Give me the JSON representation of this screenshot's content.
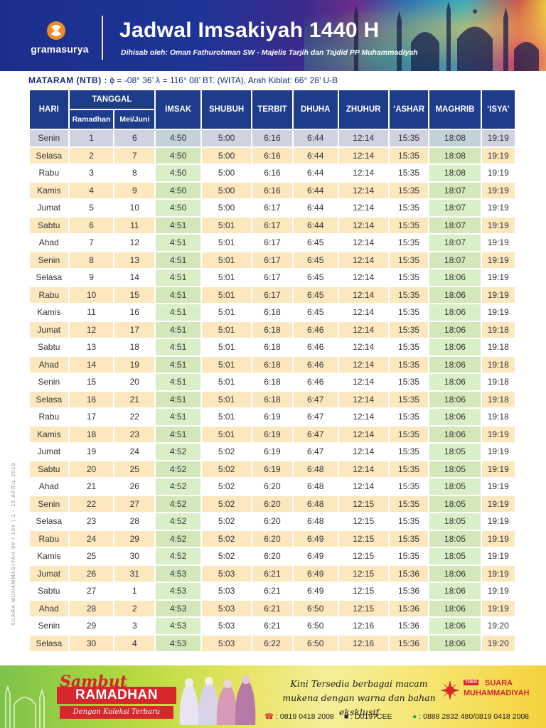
{
  "header": {
    "brand": "gramasurya",
    "title": "Jadwal Imsakiyah 1440 H",
    "subtitle": "Dihisab oleh: Oman Fathurohman SW - Majelis Tarjih dan Tajdid PP Muhammadiyah"
  },
  "location": {
    "city": "MATARAM (NTB) :",
    "details": "ϕ = -08° 36’  λ = 116° 08’  BT. (WITA), Arah Kiblat: 66° 28’ U-B"
  },
  "table": {
    "headers": {
      "hari": "HARI",
      "tanggal": "TANGGAL",
      "ramadhan": "Ramadhan",
      "mei_juni": "Mei/Juni",
      "imsak": "IMSAK",
      "shubuh": "SHUBUH",
      "terbit": "TERBIT",
      "dhuha": "DHUHA",
      "zhuhur": "ZHUHUR",
      "ashar": "‘ASHAR",
      "maghrib": "MAGHRIB",
      "isya": "‘ISYA’"
    },
    "rows": [
      [
        "Senin",
        "1",
        "6",
        "4:50",
        "5:00",
        "6:16",
        "6:44",
        "12:14",
        "15:35",
        "18:08",
        "19:19"
      ],
      [
        "Selasa",
        "2",
        "7",
        "4:50",
        "5:00",
        "6:16",
        "6:44",
        "12:14",
        "15:35",
        "18:08",
        "19:19"
      ],
      [
        "Rabu",
        "3",
        "8",
        "4:50",
        "5:00",
        "6:16",
        "6:44",
        "12:14",
        "15:35",
        "18:08",
        "19:19"
      ],
      [
        "Kamis",
        "4",
        "9",
        "4:50",
        "5:00",
        "6:16",
        "6:44",
        "12:14",
        "15:35",
        "18:07",
        "19:19"
      ],
      [
        "Jumat",
        "5",
        "10",
        "4:50",
        "5:00",
        "6:17",
        "6:44",
        "12:14",
        "15:35",
        "18:07",
        "19:19"
      ],
      [
        "Sabtu",
        "6",
        "11",
        "4:51",
        "5:01",
        "6:17",
        "6:44",
        "12:14",
        "15:35",
        "18:07",
        "19:19"
      ],
      [
        "Ahad",
        "7",
        "12",
        "4:51",
        "5:01",
        "6:17",
        "6:45",
        "12:14",
        "15:35",
        "18:07",
        "19:19"
      ],
      [
        "Senin",
        "8",
        "13",
        "4:51",
        "5:01",
        "6:17",
        "6:45",
        "12:14",
        "15:35",
        "18:07",
        "19:19"
      ],
      [
        "Selasa",
        "9",
        "14",
        "4:51",
        "5:01",
        "6:17",
        "6:45",
        "12:14",
        "15:35",
        "18:06",
        "19:19"
      ],
      [
        "Rabu",
        "10",
        "15",
        "4:51",
        "5:01",
        "6:17",
        "6:45",
        "12:14",
        "15:35",
        "18:06",
        "19:19"
      ],
      [
        "Kamis",
        "11",
        "16",
        "4:51",
        "5:01",
        "6:18",
        "6:45",
        "12:14",
        "15:35",
        "18:06",
        "19:19"
      ],
      [
        "Jumat",
        "12",
        "17",
        "4:51",
        "5:01",
        "6:18",
        "6:46",
        "12:14",
        "15:35",
        "18:06",
        "19:18"
      ],
      [
        "Sabtu",
        "13",
        "18",
        "4:51",
        "5:01",
        "6:18",
        "6:46",
        "12:14",
        "15:35",
        "18:06",
        "19:18"
      ],
      [
        "Ahad",
        "14",
        "19",
        "4:51",
        "5:01",
        "6:18",
        "6:46",
        "12:14",
        "15:35",
        "18:06",
        "19:18"
      ],
      [
        "Senin",
        "15",
        "20",
        "4:51",
        "5:01",
        "6:18",
        "6:46",
        "12:14",
        "15:35",
        "18:06",
        "19:18"
      ],
      [
        "Selasa",
        "16",
        "21",
        "4:51",
        "5:01",
        "6:18",
        "6:47",
        "12:14",
        "15:35",
        "18:06",
        "19:18"
      ],
      [
        "Rabu",
        "17",
        "22",
        "4:51",
        "5:01",
        "6:19",
        "6:47",
        "12:14",
        "15:35",
        "18:06",
        "19:18"
      ],
      [
        "Kamis",
        "18",
        "23",
        "4:51",
        "5:01",
        "6:19",
        "6:47",
        "12:14",
        "15:35",
        "18:06",
        "19:19"
      ],
      [
        "Jumat",
        "19",
        "24",
        "4:52",
        "5:02",
        "6:19",
        "6:47",
        "12:14",
        "15:35",
        "18:05",
        "19:19"
      ],
      [
        "Sabtu",
        "20",
        "25",
        "4:52",
        "5:02",
        "6:19",
        "6:48",
        "12:14",
        "15:35",
        "18:05",
        "19:19"
      ],
      [
        "Ahad",
        "21",
        "26",
        "4:52",
        "5:02",
        "6:20",
        "6:48",
        "12:14",
        "15:35",
        "18:05",
        "19:19"
      ],
      [
        "Senin",
        "22",
        "27",
        "4:52",
        "5:02",
        "6:20",
        "6:48",
        "12:15",
        "15:35",
        "18:05",
        "19:19"
      ],
      [
        "Selasa",
        "23",
        "28",
        "4:52",
        "5:02",
        "6:20",
        "6:48",
        "12:15",
        "15:35",
        "18:05",
        "19:19"
      ],
      [
        "Rabu",
        "24",
        "29",
        "4:52",
        "5:02",
        "6:20",
        "6:49",
        "12:15",
        "15:35",
        "18:05",
        "19:19"
      ],
      [
        "Kamis",
        "25",
        "30",
        "4:52",
        "5:02",
        "6:20",
        "6:49",
        "12:15",
        "15:35",
        "18:05",
        "19:19"
      ],
      [
        "Jumat",
        "26",
        "31",
        "4:53",
        "5:03",
        "6:21",
        "6:49",
        "12:15",
        "15:36",
        "18:06",
        "19:19"
      ],
      [
        "Sabtu",
        "27",
        "1",
        "4:53",
        "5:03",
        "6:21",
        "6:49",
        "12:15",
        "15:36",
        "18:06",
        "19:19"
      ],
      [
        "Ahad",
        "28",
        "2",
        "4:53",
        "5:03",
        "6:21",
        "6:50",
        "12:15",
        "15:36",
        "18:06",
        "19:19"
      ],
      [
        "Senin",
        "29",
        "3",
        "4:53",
        "5:03",
        "6:21",
        "6:50",
        "12:16",
        "15:36",
        "18:06",
        "19:20"
      ],
      [
        "Selasa",
        "30",
        "4",
        "4:53",
        "5:03",
        "6:22",
        "6:50",
        "12:16",
        "15:36",
        "18:06",
        "19:20"
      ]
    ]
  },
  "side_text": "SUARA MUHAMMADIYAH 08 / 104 | 1 - 15 APRIL 2019",
  "footer": {
    "sambut": "Sambut",
    "ramadhan": "RAMADHAN",
    "koleksi": "Dengan Koleksi Terbaru",
    "promo_line1": "Kini Tersedia berbagai macam",
    "promo_line2": "mukena dengan warna dan bahan eksklusif",
    "phone": ": 0819 0418 2008",
    "bbm": ": D0197CEE",
    "whatsapp": ": 0888 2832 480/0819 0418 2008",
    "store_toko": "TOKO",
    "store_name1": "SUARA",
    "store_name2": "MUHAMMADIYAH"
  },
  "colors": {
    "header_blue": "#1e3c8c",
    "row_alt": "#fce7be",
    "highlight_green": "#d9efc8",
    "accent_red": "#d8262d"
  }
}
